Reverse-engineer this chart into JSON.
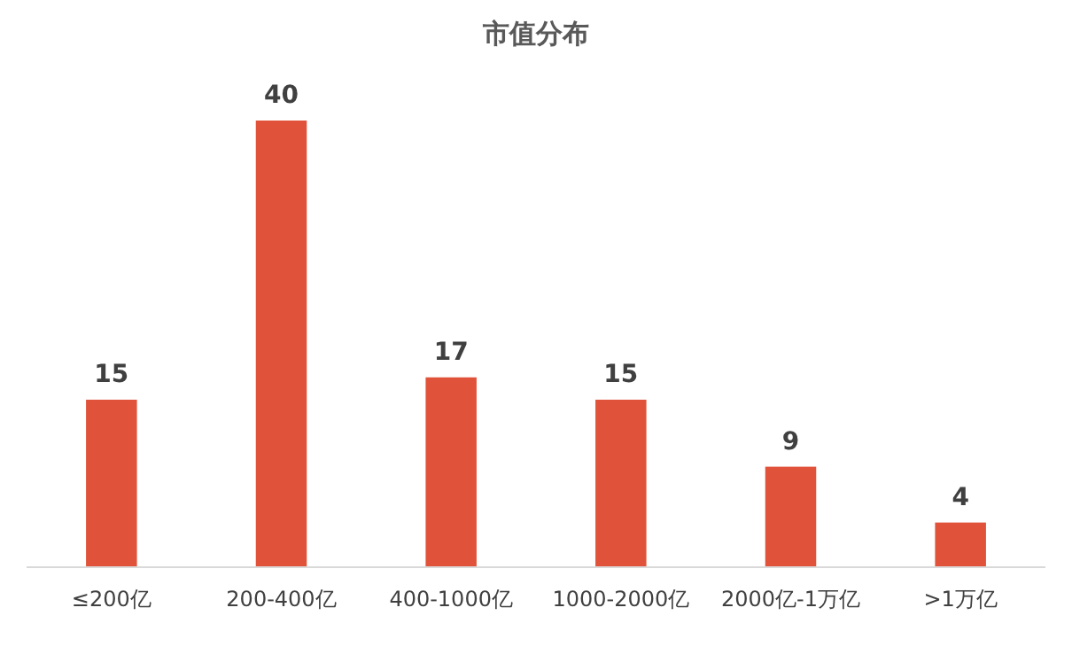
{
  "chart_data": {
    "type": "bar",
    "title": "市值分布",
    "categories": [
      "≤200亿",
      "200-400亿",
      "400-1000亿",
      "1000-2000亿",
      "2000亿-1万亿",
      ">1万亿"
    ],
    "values": [
      15,
      40,
      17,
      15,
      9,
      4
    ],
    "color": "#e0533a",
    "data_labels": true
  }
}
